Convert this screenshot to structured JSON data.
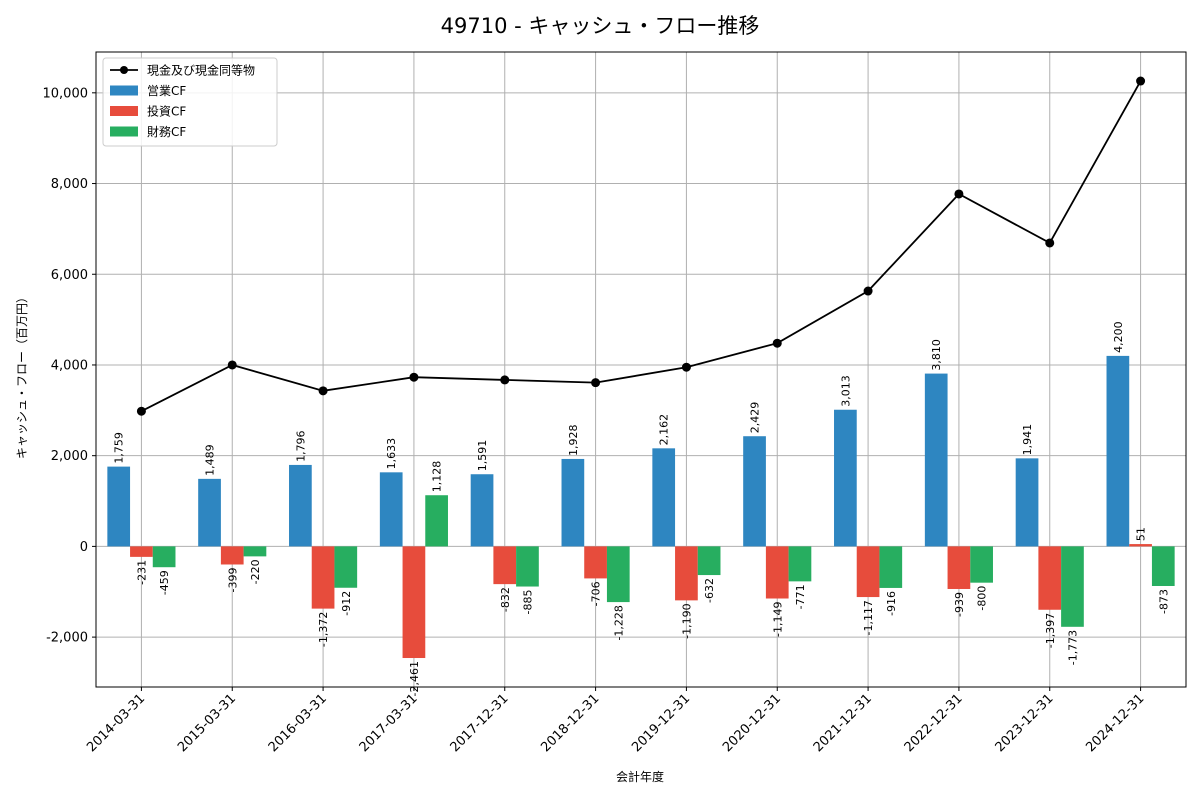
{
  "chart_data": {
    "type": "bar",
    "title": "49710 - キャッシュ・フロー推移",
    "xlabel": "会計年度",
    "ylabel": "キャッシュ・フロー（百万円）",
    "ylim": [
      -3100,
      10900
    ],
    "yticks": [
      -2000,
      0,
      2000,
      4000,
      6000,
      8000,
      10000
    ],
    "ytick_labels": [
      "-2,000",
      "0",
      "2,000",
      "4,000",
      "6,000",
      "8,000",
      "10,000"
    ],
    "grid": true,
    "legend_position": "top-left",
    "categories": [
      "2014-03-31",
      "2015-03-31",
      "2016-03-31",
      "2017-03-31",
      "2017-12-31",
      "2018-12-31",
      "2019-12-31",
      "2020-12-31",
      "2021-12-31",
      "2022-12-31",
      "2023-12-31",
      "2024-12-31"
    ],
    "series": [
      {
        "name": "営業CF",
        "kind": "bar",
        "color": "#2e86c1",
        "values": [
          1759,
          1489,
          1796,
          1633,
          1591,
          1928,
          2162,
          2429,
          3013,
          3810,
          1941,
          4200
        ],
        "labels": [
          "1,759",
          "1,489",
          "1,796",
          "1,633",
          "1,591",
          "1,928",
          "2,162",
          "2,429",
          "3,013",
          "3,810",
          "1,941",
          "4,200"
        ]
      },
      {
        "name": "投資CF",
        "kind": "bar",
        "color": "#e74c3c",
        "values": [
          -231,
          -399,
          -1372,
          -2461,
          -832,
          -706,
          -1190,
          -1149,
          -1117,
          -939,
          -1397,
          51
        ],
        "labels": [
          "-231",
          "-399",
          "-1,372",
          "-2,461",
          "-832",
          "-706",
          "-1,190",
          "-1,149",
          "-1,117",
          "-939",
          "-1,397",
          "51"
        ]
      },
      {
        "name": "財務CF",
        "kind": "bar",
        "color": "#27ae60",
        "values": [
          -459,
          -220,
          -912,
          1128,
          -885,
          -1228,
          -632,
          -771,
          -916,
          -800,
          -1773,
          -873
        ],
        "labels": [
          "-459",
          "-220",
          "-912",
          "1,128",
          "-885",
          "-1,228",
          "-632",
          "-771",
          "-916",
          "-800",
          "-1,773",
          "-873"
        ]
      },
      {
        "name": "現金及び現金同等物",
        "kind": "line",
        "color": "#000000",
        "values": [
          2980,
          4000,
          3430,
          3730,
          3670,
          3610,
          3950,
          4480,
          5630,
          7770,
          6690,
          10260
        ]
      }
    ]
  }
}
